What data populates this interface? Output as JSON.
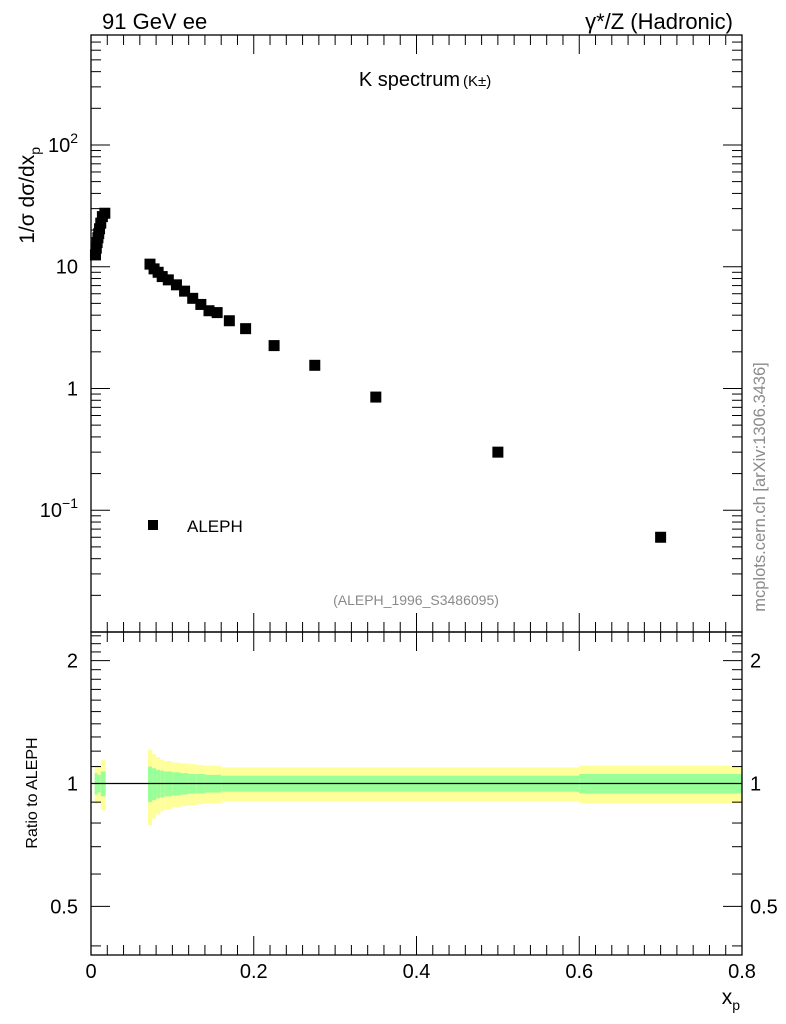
{
  "header": {
    "left": "91 GeV ee",
    "right": "γ*/Z (Hadronic)"
  },
  "side_label": "mcplots.cern.ch [arXiv:1306.3436]",
  "colors": {
    "data_marker": "#000000",
    "band_inner": "#99ff99",
    "band_outer": "#ffff99",
    "ref_line": "#000000"
  },
  "chart_data": [
    {
      "type": "scatter",
      "title": "K spectrum",
      "title_suffix": "(K±)",
      "ylabel": "1/σ dσ/dxp",
      "ylabel_main": "1/σ dσ/dx",
      "ylabel_sub": "p",
      "yscale": "log",
      "ylim": [
        0.01,
        800
      ],
      "xlim": [
        0,
        0.8
      ],
      "y_tick_labels": [
        {
          "value": 100,
          "base": "10",
          "exp": "2"
        },
        {
          "value": 10,
          "base": "10",
          "exp": ""
        },
        {
          "value": 1,
          "base": "1",
          "exp": ""
        },
        {
          "value": 0.1,
          "base": "10",
          "exp": "−1"
        }
      ],
      "legend": {
        "entry": "ALEPH",
        "placement": "bottom-left"
      },
      "watermark": "(ALEPH_1996_S3486095)",
      "series": [
        {
          "name": "ALEPH",
          "x": [
            0.0055,
            0.0065,
            0.0075,
            0.0085,
            0.0095,
            0.0105,
            0.012,
            0.014,
            0.017,
            0.0725,
            0.0775,
            0.0825,
            0.0875,
            0.095,
            0.105,
            0.115,
            0.125,
            0.135,
            0.145,
            0.155,
            0.17,
            0.19,
            0.225,
            0.275,
            0.35,
            0.5,
            0.7
          ],
          "y": [
            12.5,
            14.2,
            15.8,
            17.3,
            18.7,
            20.5,
            22.8,
            25.8,
            27.5,
            10.5,
            9.6,
            9.0,
            8.3,
            7.8,
            7.1,
            6.3,
            5.5,
            4.9,
            4.35,
            4.2,
            3.6,
            3.1,
            2.25,
            1.55,
            0.85,
            0.3,
            0.06
          ]
        }
      ]
    },
    {
      "type": "area",
      "ylabel": "Ratio to ALEPH",
      "xlabel": "xp",
      "xlabel_main": "x",
      "xlabel_sub": "p",
      "xlim": [
        0,
        0.8
      ],
      "ylim": [
        0.38,
        2.35
      ],
      "yscale": "log",
      "x_tick_labels": [
        "0",
        "0.2",
        "0.4",
        "0.6",
        "0.8"
      ],
      "x_ticks": [
        0,
        0.2,
        0.4,
        0.6,
        0.8
      ],
      "y_tick_labels": [
        "0.5",
        "1",
        "2"
      ],
      "y_ticks": [
        0.5,
        1,
        2
      ],
      "reference_line": 1,
      "bands": [
        {
          "x0": 0.0045,
          "x1": 0.008,
          "inner": [
            0.94,
            1.06
          ],
          "outer": [
            0.89,
            1.11
          ]
        },
        {
          "x0": 0.008,
          "x1": 0.012,
          "inner": [
            0.95,
            1.05
          ],
          "outer": [
            0.9,
            1.1
          ]
        },
        {
          "x0": 0.012,
          "x1": 0.018,
          "inner": [
            0.93,
            1.07
          ],
          "outer": [
            0.86,
            1.14
          ]
        },
        {
          "x0": 0.07,
          "x1": 0.075,
          "inner": [
            0.9,
            1.1
          ],
          "outer": [
            0.79,
            1.21
          ]
        },
        {
          "x0": 0.075,
          "x1": 0.08,
          "inner": [
            0.91,
            1.09
          ],
          "outer": [
            0.82,
            1.18
          ]
        },
        {
          "x0": 0.08,
          "x1": 0.085,
          "inner": [
            0.92,
            1.08
          ],
          "outer": [
            0.84,
            1.16
          ]
        },
        {
          "x0": 0.085,
          "x1": 0.09,
          "inner": [
            0.925,
            1.075
          ],
          "outer": [
            0.855,
            1.145
          ]
        },
        {
          "x0": 0.09,
          "x1": 0.1,
          "inner": [
            0.93,
            1.07
          ],
          "outer": [
            0.865,
            1.135
          ]
        },
        {
          "x0": 0.1,
          "x1": 0.11,
          "inner": [
            0.935,
            1.065
          ],
          "outer": [
            0.875,
            1.125
          ]
        },
        {
          "x0": 0.11,
          "x1": 0.12,
          "inner": [
            0.94,
            1.06
          ],
          "outer": [
            0.88,
            1.12
          ]
        },
        {
          "x0": 0.12,
          "x1": 0.13,
          "inner": [
            0.945,
            1.055
          ],
          "outer": [
            0.885,
            1.115
          ]
        },
        {
          "x0": 0.13,
          "x1": 0.14,
          "inner": [
            0.945,
            1.055
          ],
          "outer": [
            0.89,
            1.11
          ]
        },
        {
          "x0": 0.14,
          "x1": 0.16,
          "inner": [
            0.95,
            1.05
          ],
          "outer": [
            0.895,
            1.105
          ]
        },
        {
          "x0": 0.16,
          "x1": 0.6,
          "inner": [
            0.955,
            1.045
          ],
          "outer": [
            0.905,
            1.095
          ]
        },
        {
          "x0": 0.6,
          "x1": 0.8,
          "inner": [
            0.945,
            1.055
          ],
          "outer": [
            0.895,
            1.105
          ]
        }
      ]
    }
  ]
}
